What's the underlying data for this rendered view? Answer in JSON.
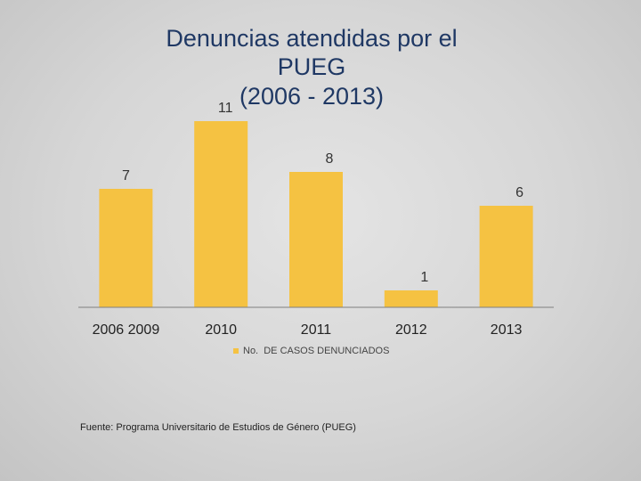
{
  "chart_data": {
    "type": "bar",
    "title_lines": [
      "Denuncias atendidas por el",
      "PUEG",
      "(2006 - 2013)"
    ],
    "categories": [
      "2006 2009",
      "2010",
      "2011",
      "2012",
      "2013"
    ],
    "series": [
      {
        "name": "No.  DE CASOS DENUNCIADOS",
        "values": [
          7,
          11,
          8,
          1,
          6
        ]
      }
    ],
    "ylim": [
      0,
      12
    ],
    "grid": false,
    "legend_position": "bottom",
    "xlabel": "",
    "ylabel": ""
  },
  "colors": {
    "bar": "#f5c242",
    "axis": "#7f7f7f",
    "title": "#1f3864",
    "legend_swatch": "#f5c242"
  },
  "source_note": "Fuente: Programa Universitario de Estudios de Género (PUEG)"
}
